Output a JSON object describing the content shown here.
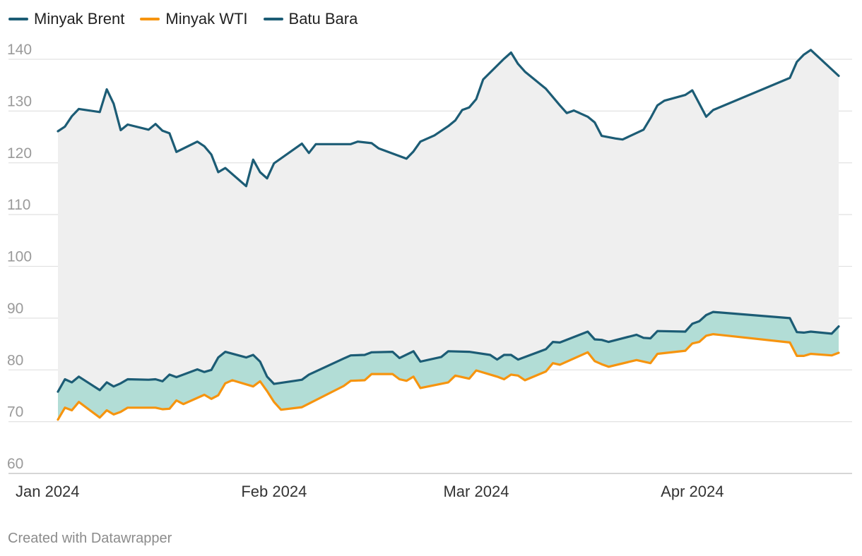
{
  "chart_data": {
    "type": "line",
    "x_unit": "date",
    "ylim": [
      60,
      145
    ],
    "yticks": [
      60,
      70,
      80,
      90,
      100,
      110,
      120,
      130,
      140
    ],
    "xticks": [
      {
        "label": "Jan 2024",
        "date": "2024-01-01"
      },
      {
        "label": "Feb 2024",
        "date": "2024-02-01"
      },
      {
        "label": "Mar 2024",
        "date": "2024-03-01"
      },
      {
        "label": "Apr 2024",
        "date": "2024-04-01"
      }
    ],
    "grid": true,
    "legend_position": "top-left",
    "area_fills": [
      {
        "between": [
          "Batu Bara",
          "Minyak Brent"
        ],
        "color": "#efefef"
      },
      {
        "between": [
          "Minyak Brent",
          "Minyak WTI"
        ],
        "color": "#b2ddd6"
      }
    ],
    "series": [
      {
        "name": "Minyak Brent",
        "color": "#1c5c75",
        "points": [
          [
            "2024-01-01",
            75.8
          ],
          [
            "2024-01-02",
            78.2
          ],
          [
            "2024-01-03",
            77.6
          ],
          [
            "2024-01-04",
            78.7
          ],
          [
            "2024-01-07",
            76.1
          ],
          [
            "2024-01-08",
            77.6
          ],
          [
            "2024-01-09",
            76.8
          ],
          [
            "2024-01-10",
            77.4
          ],
          [
            "2024-01-11",
            78.2
          ],
          [
            "2024-01-14",
            78.1
          ],
          [
            "2024-01-15",
            78.2
          ],
          [
            "2024-01-16",
            77.8
          ],
          [
            "2024-01-17",
            79.1
          ],
          [
            "2024-01-18",
            78.6
          ],
          [
            "2024-01-21",
            80.1
          ],
          [
            "2024-01-22",
            79.6
          ],
          [
            "2024-01-23",
            80.0
          ],
          [
            "2024-01-24",
            82.4
          ],
          [
            "2024-01-25",
            83.5
          ],
          [
            "2024-01-28",
            82.4
          ],
          [
            "2024-01-29",
            82.9
          ],
          [
            "2024-01-30",
            81.6
          ],
          [
            "2024-01-31",
            78.7
          ],
          [
            "2024-02-01",
            77.3
          ],
          [
            "2024-02-04",
            77.9
          ],
          [
            "2024-02-05",
            78.1
          ],
          [
            "2024-02-06",
            79.1
          ],
          [
            "2024-02-11",
            82.2
          ],
          [
            "2024-02-12",
            82.8
          ],
          [
            "2024-02-14",
            82.9
          ],
          [
            "2024-02-15",
            83.4
          ],
          [
            "2024-02-18",
            83.5
          ],
          [
            "2024-02-19",
            82.3
          ],
          [
            "2024-02-21",
            83.6
          ],
          [
            "2024-02-22",
            81.6
          ],
          [
            "2024-02-25",
            82.5
          ],
          [
            "2024-02-26",
            83.6
          ],
          [
            "2024-02-29",
            83.5
          ],
          [
            "2024-03-03",
            82.9
          ],
          [
            "2024-03-04",
            82.0
          ],
          [
            "2024-03-05",
            82.9
          ],
          [
            "2024-03-06",
            82.9
          ],
          [
            "2024-03-07",
            82.0
          ],
          [
            "2024-03-11",
            84.0
          ],
          [
            "2024-03-12",
            85.4
          ],
          [
            "2024-03-13",
            85.3
          ],
          [
            "2024-03-17",
            87.4
          ],
          [
            "2024-03-18",
            85.9
          ],
          [
            "2024-03-19",
            85.8
          ],
          [
            "2024-03-20",
            85.4
          ],
          [
            "2024-03-24",
            86.8
          ],
          [
            "2024-03-25",
            86.2
          ],
          [
            "2024-03-26",
            86.1
          ],
          [
            "2024-03-27",
            87.5
          ],
          [
            "2024-03-31",
            87.4
          ],
          [
            "2024-04-01",
            88.9
          ],
          [
            "2024-04-02",
            89.4
          ],
          [
            "2024-04-03",
            90.6
          ],
          [
            "2024-04-04",
            91.2
          ],
          [
            "2024-04-15",
            90.0
          ],
          [
            "2024-04-16",
            87.3
          ],
          [
            "2024-04-17",
            87.2
          ],
          [
            "2024-04-18",
            87.4
          ],
          [
            "2024-04-21",
            87.0
          ],
          [
            "2024-04-22",
            88.4
          ]
        ]
      },
      {
        "name": "Minyak WTI",
        "color": "#f6940f",
        "points": [
          [
            "2024-01-01",
            70.4
          ],
          [
            "2024-01-02",
            72.7
          ],
          [
            "2024-01-03",
            72.2
          ],
          [
            "2024-01-04",
            73.8
          ],
          [
            "2024-01-07",
            70.8
          ],
          [
            "2024-01-08",
            72.2
          ],
          [
            "2024-01-09",
            71.4
          ],
          [
            "2024-01-10",
            71.9
          ],
          [
            "2024-01-11",
            72.7
          ],
          [
            "2024-01-14",
            72.7
          ],
          [
            "2024-01-15",
            72.7
          ],
          [
            "2024-01-16",
            72.4
          ],
          [
            "2024-01-17",
            72.5
          ],
          [
            "2024-01-18",
            74.1
          ],
          [
            "2024-01-19",
            73.4
          ],
          [
            "2024-01-22",
            75.2
          ],
          [
            "2024-01-23",
            74.4
          ],
          [
            "2024-01-24",
            75.1
          ],
          [
            "2024-01-25",
            77.4
          ],
          [
            "2024-01-26",
            78.0
          ],
          [
            "2024-01-29",
            76.8
          ],
          [
            "2024-01-30",
            77.8
          ],
          [
            "2024-01-31",
            75.9
          ],
          [
            "2024-02-01",
            73.8
          ],
          [
            "2024-02-02",
            72.3
          ],
          [
            "2024-02-05",
            72.8
          ],
          [
            "2024-02-11",
            76.9
          ],
          [
            "2024-02-12",
            77.9
          ],
          [
            "2024-02-14",
            78.0
          ],
          [
            "2024-02-15",
            79.2
          ],
          [
            "2024-02-18",
            79.2
          ],
          [
            "2024-02-19",
            78.2
          ],
          [
            "2024-02-20",
            77.9
          ],
          [
            "2024-02-21",
            78.7
          ],
          [
            "2024-02-22",
            76.5
          ],
          [
            "2024-02-26",
            77.6
          ],
          [
            "2024-02-27",
            78.9
          ],
          [
            "2024-02-29",
            78.3
          ],
          [
            "2024-03-01",
            79.9
          ],
          [
            "2024-03-04",
            78.7
          ],
          [
            "2024-03-05",
            78.2
          ],
          [
            "2024-03-06",
            79.1
          ],
          [
            "2024-03-07",
            78.9
          ],
          [
            "2024-03-08",
            78.0
          ],
          [
            "2024-03-11",
            79.7
          ],
          [
            "2024-03-12",
            81.3
          ],
          [
            "2024-03-13",
            81.0
          ],
          [
            "2024-03-17",
            83.4
          ],
          [
            "2024-03-18",
            81.7
          ],
          [
            "2024-03-19",
            81.1
          ],
          [
            "2024-03-20",
            80.6
          ],
          [
            "2024-03-24",
            81.9
          ],
          [
            "2024-03-26",
            81.3
          ],
          [
            "2024-03-27",
            83.1
          ],
          [
            "2024-03-31",
            83.7
          ],
          [
            "2024-04-01",
            85.1
          ],
          [
            "2024-04-02",
            85.4
          ],
          [
            "2024-04-03",
            86.6
          ],
          [
            "2024-04-04",
            86.9
          ],
          [
            "2024-04-15",
            85.3
          ],
          [
            "2024-04-16",
            82.7
          ],
          [
            "2024-04-17",
            82.7
          ],
          [
            "2024-04-18",
            83.1
          ],
          [
            "2024-04-21",
            82.8
          ],
          [
            "2024-04-22",
            83.3
          ]
        ]
      },
      {
        "name": "Batu Bara",
        "color": "#1c5c75",
        "points": [
          [
            "2024-01-01",
            126.1
          ],
          [
            "2024-01-02",
            127.0
          ],
          [
            "2024-01-03",
            129.0
          ],
          [
            "2024-01-04",
            130.4
          ],
          [
            "2024-01-07",
            129.8
          ],
          [
            "2024-01-08",
            134.2
          ],
          [
            "2024-01-09",
            131.4
          ],
          [
            "2024-01-10",
            126.3
          ],
          [
            "2024-01-11",
            127.4
          ],
          [
            "2024-01-14",
            126.4
          ],
          [
            "2024-01-15",
            127.5
          ],
          [
            "2024-01-16",
            126.2
          ],
          [
            "2024-01-17",
            125.7
          ],
          [
            "2024-01-18",
            122.1
          ],
          [
            "2024-01-21",
            124.1
          ],
          [
            "2024-01-22",
            123.2
          ],
          [
            "2024-01-23",
            121.6
          ],
          [
            "2024-01-24",
            118.2
          ],
          [
            "2024-01-25",
            119.0
          ],
          [
            "2024-01-28",
            115.5
          ],
          [
            "2024-01-29",
            120.6
          ],
          [
            "2024-01-30",
            118.2
          ],
          [
            "2024-01-31",
            117.0
          ],
          [
            "2024-02-01",
            119.9
          ],
          [
            "2024-02-05",
            123.7
          ],
          [
            "2024-02-06",
            121.9
          ],
          [
            "2024-02-07",
            123.6
          ],
          [
            "2024-02-12",
            123.6
          ],
          [
            "2024-02-13",
            124.1
          ],
          [
            "2024-02-15",
            123.8
          ],
          [
            "2024-02-16",
            122.8
          ],
          [
            "2024-02-20",
            120.8
          ],
          [
            "2024-02-21",
            122.2
          ],
          [
            "2024-02-22",
            124.1
          ],
          [
            "2024-02-24",
            125.3
          ],
          [
            "2024-02-26",
            127.1
          ],
          [
            "2024-02-27",
            128.2
          ],
          [
            "2024-02-28",
            130.2
          ],
          [
            "2024-02-29",
            130.7
          ],
          [
            "2024-03-01",
            132.3
          ],
          [
            "2024-03-02",
            136.1
          ],
          [
            "2024-03-05",
            140.1
          ],
          [
            "2024-03-06",
            141.3
          ],
          [
            "2024-03-07",
            139.1
          ],
          [
            "2024-03-08",
            137.6
          ],
          [
            "2024-03-11",
            134.3
          ],
          [
            "2024-03-13",
            131.1
          ],
          [
            "2024-03-14",
            129.6
          ],
          [
            "2024-03-15",
            130.1
          ],
          [
            "2024-03-17",
            128.9
          ],
          [
            "2024-03-18",
            127.8
          ],
          [
            "2024-03-19",
            125.2
          ],
          [
            "2024-03-21",
            124.7
          ],
          [
            "2024-03-22",
            124.5
          ],
          [
            "2024-03-25",
            126.4
          ],
          [
            "2024-03-26",
            128.6
          ],
          [
            "2024-03-27",
            131.1
          ],
          [
            "2024-03-28",
            132.0
          ],
          [
            "2024-03-31",
            133.1
          ],
          [
            "2024-04-01",
            134.0
          ],
          [
            "2024-04-03",
            128.9
          ],
          [
            "2024-04-04",
            130.2
          ],
          [
            "2024-04-15",
            136.4
          ],
          [
            "2024-04-16",
            139.5
          ],
          [
            "2024-04-17",
            140.9
          ],
          [
            "2024-04-18",
            141.8
          ],
          [
            "2024-04-22",
            136.8
          ]
        ]
      }
    ]
  },
  "legend": [
    {
      "label": "Minyak Brent",
      "color": "#1c5c75"
    },
    {
      "label": "Minyak WTI",
      "color": "#f6940f"
    },
    {
      "label": "Batu Bara",
      "color": "#1c5c75"
    }
  ],
  "footer": "Created with Datawrapper"
}
